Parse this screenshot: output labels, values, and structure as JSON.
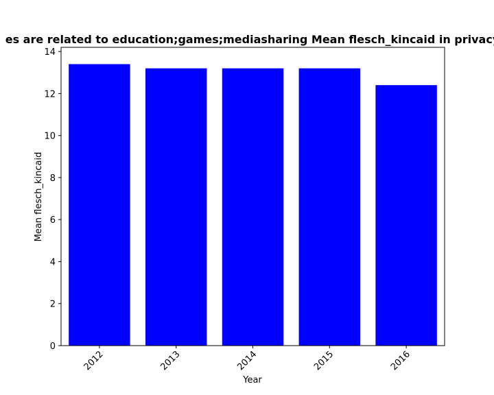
{
  "chart_data": {
    "type": "bar",
    "title": "es are related to education;games;mediasharing Mean flesch_kincaid in privacy",
    "xlabel": "Year",
    "ylabel": "Mean flesch_kincaid",
    "categories": [
      "2012",
      "2013",
      "2014",
      "2015",
      "2016"
    ],
    "values": [
      13.4,
      13.2,
      13.2,
      13.2,
      12.4
    ],
    "ylim": [
      0,
      14.2
    ],
    "yticks": [
      0,
      2,
      4,
      6,
      8,
      10,
      12,
      14
    ],
    "bar_color": "#0000ff",
    "grid": false,
    "legend": "none"
  }
}
